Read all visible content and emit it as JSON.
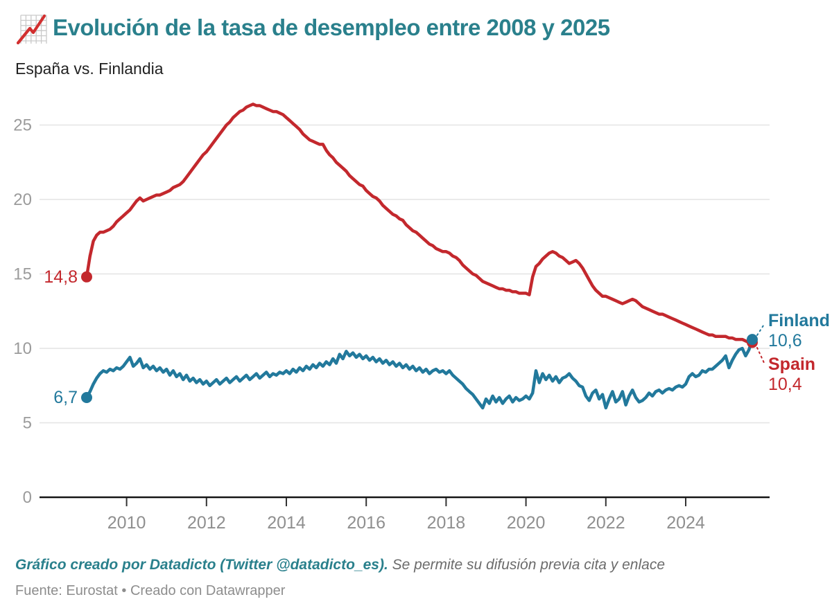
{
  "header": {
    "icon": "chart-increasing-icon",
    "title": "Evolución de la tasa de desempleo entre 2008 y 2025",
    "subtitle": "España vs. Finlandia",
    "title_color": "#2a808c"
  },
  "footer": {
    "credit": "Gráfico creado por Datadicto (Twitter @datadicto_es).",
    "note": "Se permite su difusión previa cita y enlace",
    "source": "Fuente: Eurostat • Creado con Datawrapper"
  },
  "chart_data": {
    "type": "line",
    "title": "Evolución de la tasa de desempleo entre 2008 y 2025",
    "subtitle": "España vs. Finlandia",
    "frequency": "monthly",
    "x_start": "2009-01",
    "x_end": "2025-09",
    "x_ticks": [
      2010,
      2012,
      2014,
      2016,
      2018,
      2020,
      2022,
      2024
    ],
    "y_ticks": [
      0,
      5,
      10,
      15,
      20,
      25
    ],
    "ylim": [
      0,
      27.3
    ],
    "grid": "horizontal",
    "legend_position": "end-of-line-labels",
    "axis_label_color": "#9b9b9b",
    "series": [
      {
        "name": "Spain",
        "color": "#c3282d",
        "start_value": 14.8,
        "end_value": 10.4,
        "start_label": "14,8",
        "end_label": "10,4",
        "values": [
          14.8,
          16.2,
          17.2,
          17.6,
          17.8,
          17.8,
          17.9,
          18.0,
          18.2,
          18.5,
          18.7,
          18.9,
          19.1,
          19.3,
          19.6,
          19.9,
          20.1,
          19.9,
          20.0,
          20.1,
          20.2,
          20.3,
          20.3,
          20.4,
          20.5,
          20.6,
          20.8,
          20.9,
          21.0,
          21.2,
          21.5,
          21.8,
          22.1,
          22.4,
          22.7,
          23.0,
          23.2,
          23.5,
          23.8,
          24.1,
          24.4,
          24.7,
          25.0,
          25.2,
          25.5,
          25.7,
          25.9,
          26.0,
          26.2,
          26.3,
          26.4,
          26.3,
          26.3,
          26.2,
          26.1,
          26.0,
          25.9,
          25.9,
          25.8,
          25.7,
          25.5,
          25.3,
          25.1,
          24.9,
          24.7,
          24.4,
          24.2,
          24.0,
          23.9,
          23.8,
          23.7,
          23.7,
          23.3,
          23.0,
          22.8,
          22.5,
          22.3,
          22.1,
          21.9,
          21.6,
          21.4,
          21.2,
          21.0,
          20.9,
          20.6,
          20.4,
          20.2,
          20.1,
          19.9,
          19.6,
          19.4,
          19.2,
          19.0,
          18.9,
          18.7,
          18.6,
          18.3,
          18.1,
          17.9,
          17.8,
          17.6,
          17.4,
          17.2,
          17.0,
          16.9,
          16.7,
          16.6,
          16.5,
          16.5,
          16.4,
          16.2,
          16.1,
          15.9,
          15.6,
          15.4,
          15.2,
          15.0,
          14.9,
          14.7,
          14.5,
          14.4,
          14.3,
          14.2,
          14.1,
          14.0,
          14.0,
          13.9,
          13.9,
          13.8,
          13.8,
          13.7,
          13.7,
          13.7,
          13.6,
          14.8,
          15.5,
          15.7,
          16.0,
          16.2,
          16.4,
          16.5,
          16.4,
          16.2,
          16.1,
          15.9,
          15.7,
          15.8,
          15.9,
          15.7,
          15.4,
          15.0,
          14.6,
          14.2,
          13.9,
          13.7,
          13.5,
          13.5,
          13.4,
          13.3,
          13.2,
          13.1,
          13.0,
          13.1,
          13.2,
          13.3,
          13.2,
          13.0,
          12.8,
          12.7,
          12.6,
          12.5,
          12.4,
          12.3,
          12.3,
          12.2,
          12.1,
          12.0,
          11.9,
          11.8,
          11.7,
          11.6,
          11.5,
          11.4,
          11.3,
          11.2,
          11.1,
          11.0,
          10.9,
          10.9,
          10.8,
          10.8,
          10.8,
          10.8,
          10.7,
          10.7,
          10.6,
          10.6,
          10.6,
          10.5,
          10.4,
          10.4
        ]
      },
      {
        "name": "Finland",
        "color": "#22799c",
        "start_value": 6.7,
        "end_value": 10.6,
        "start_label": "6,7",
        "end_label": "10,6",
        "values": [
          6.7,
          7.1,
          7.6,
          8.0,
          8.3,
          8.5,
          8.4,
          8.6,
          8.5,
          8.7,
          8.6,
          8.8,
          9.1,
          9.4,
          8.8,
          9.0,
          9.3,
          8.7,
          8.9,
          8.6,
          8.8,
          8.5,
          8.7,
          8.4,
          8.6,
          8.2,
          8.5,
          8.1,
          8.3,
          7.9,
          8.2,
          7.8,
          8.0,
          7.7,
          7.9,
          7.6,
          7.8,
          7.5,
          7.7,
          7.9,
          7.6,
          7.8,
          8.0,
          7.7,
          7.9,
          8.1,
          7.8,
          8.0,
          8.2,
          7.9,
          8.1,
          8.3,
          8.0,
          8.2,
          8.4,
          8.1,
          8.3,
          8.2,
          8.4,
          8.3,
          8.5,
          8.3,
          8.6,
          8.4,
          8.7,
          8.5,
          8.8,
          8.6,
          8.9,
          8.7,
          9.0,
          8.8,
          9.1,
          8.9,
          9.3,
          9.0,
          9.6,
          9.3,
          9.8,
          9.5,
          9.7,
          9.4,
          9.6,
          9.3,
          9.5,
          9.2,
          9.4,
          9.1,
          9.3,
          9.0,
          9.2,
          8.9,
          9.1,
          8.8,
          9.0,
          8.7,
          8.9,
          8.6,
          8.8,
          8.5,
          8.7,
          8.4,
          8.6,
          8.3,
          8.5,
          8.6,
          8.4,
          8.5,
          8.3,
          8.5,
          8.2,
          8.0,
          7.8,
          7.6,
          7.3,
          7.1,
          6.9,
          6.6,
          6.3,
          6.0,
          6.6,
          6.3,
          6.8,
          6.4,
          6.7,
          6.3,
          6.6,
          6.8,
          6.4,
          6.7,
          6.5,
          6.6,
          6.8,
          6.6,
          7.0,
          8.5,
          7.7,
          8.3,
          7.9,
          8.2,
          7.8,
          8.1,
          7.7,
          8.0,
          8.1,
          8.3,
          8.0,
          7.8,
          7.5,
          7.4,
          6.8,
          6.5,
          7.0,
          7.2,
          6.6,
          6.9,
          6.0,
          6.6,
          7.1,
          6.4,
          6.6,
          7.1,
          6.2,
          6.8,
          7.2,
          6.7,
          6.4,
          6.5,
          6.7,
          7.0,
          6.8,
          7.1,
          7.2,
          7.0,
          7.2,
          7.3,
          7.2,
          7.4,
          7.5,
          7.4,
          7.6,
          8.1,
          8.3,
          8.1,
          8.2,
          8.5,
          8.4,
          8.6,
          8.6,
          8.8,
          9.0,
          9.2,
          9.5,
          8.7,
          9.2,
          9.6,
          9.9,
          10.0,
          9.5,
          9.9,
          10.6
        ]
      }
    ]
  }
}
